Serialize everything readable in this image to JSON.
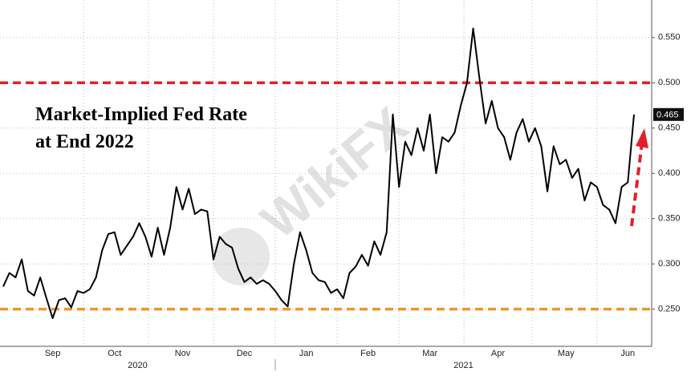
{
  "chart_data": {
    "type": "line",
    "title_lines": [
      "Market-Implied Fed Rate",
      "at End 2022"
    ],
    "watermark": "WikiFX",
    "categories": [
      null,
      null,
      null,
      null,
      null,
      null,
      null,
      null,
      "Sep",
      null,
      null,
      null,
      null,
      null,
      null,
      null,
      null,
      null,
      "Oct",
      null,
      null,
      null,
      null,
      null,
      null,
      null,
      null,
      null,
      null,
      "Nov",
      null,
      null,
      null,
      null,
      null,
      null,
      null,
      null,
      null,
      "Dec",
      null,
      null,
      null,
      null,
      null,
      null,
      null,
      null,
      null,
      "Jan",
      null,
      null,
      null,
      null,
      null,
      null,
      null,
      null,
      null,
      "Feb",
      null,
      null,
      null,
      null,
      null,
      null,
      null,
      null,
      null,
      "Mar",
      null,
      null,
      null,
      null,
      null,
      null,
      null,
      null,
      null,
      null,
      "Apr",
      null,
      null,
      null,
      null,
      null,
      null,
      null,
      null,
      null,
      null,
      "May",
      null,
      null,
      null,
      null,
      null,
      null,
      null,
      null,
      null,
      "Jun",
      null
    ],
    "series": [
      {
        "color": "#000000",
        "values": [
          0.275,
          0.29,
          0.285,
          0.305,
          0.27,
          0.265,
          0.285,
          0.262,
          0.24,
          0.26,
          0.262,
          0.252,
          0.27,
          0.268,
          0.272,
          0.285,
          0.315,
          0.333,
          0.335,
          0.31,
          0.32,
          0.33,
          0.345,
          0.33,
          0.308,
          0.34,
          0.31,
          0.34,
          0.385,
          0.36,
          0.383,
          0.355,
          0.36,
          0.358,
          0.305,
          0.33,
          0.322,
          0.318,
          0.295,
          0.28,
          0.285,
          0.278,
          0.282,
          0.278,
          0.27,
          0.26,
          0.253,
          0.3,
          0.335,
          0.315,
          0.29,
          0.282,
          0.28,
          0.268,
          0.272,
          0.262,
          0.29,
          0.297,
          0.31,
          0.298,
          0.325,
          0.31,
          0.335,
          0.465,
          0.385,
          0.435,
          0.42,
          0.45,
          0.425,
          0.465,
          0.4,
          0.44,
          0.435,
          0.445,
          0.475,
          0.5,
          0.56,
          0.505,
          0.455,
          0.48,
          0.45,
          0.44,
          0.415,
          0.445,
          0.46,
          0.435,
          0.45,
          0.43,
          0.38,
          0.43,
          0.41,
          0.415,
          0.395,
          0.405,
          0.37,
          0.39,
          0.385,
          0.365,
          0.36,
          0.345,
          0.385,
          0.39,
          0.465
        ]
      }
    ],
    "last_label": "0.465",
    "year_labels": [
      "2020",
      "2021"
    ],
    "reference_lines": [
      {
        "value": 0.5,
        "color": "#e3202a"
      },
      {
        "value": 0.25,
        "color": "#f0962a"
      }
    ],
    "ylim": [
      0.209,
      0.587
    ],
    "yticks": [
      {
        "value": 0.25,
        "label": "0.250"
      },
      {
        "value": 0.3,
        "label": "0.300"
      },
      {
        "value": 0.35,
        "label": "0.350"
      },
      {
        "value": 0.4,
        "label": "0.400"
      },
      {
        "value": 0.45,
        "label": "0.450"
      },
      {
        "value": 0.5,
        "label": "0.500"
      },
      {
        "value": 0.55,
        "label": "0.550"
      }
    ],
    "grid": true
  }
}
